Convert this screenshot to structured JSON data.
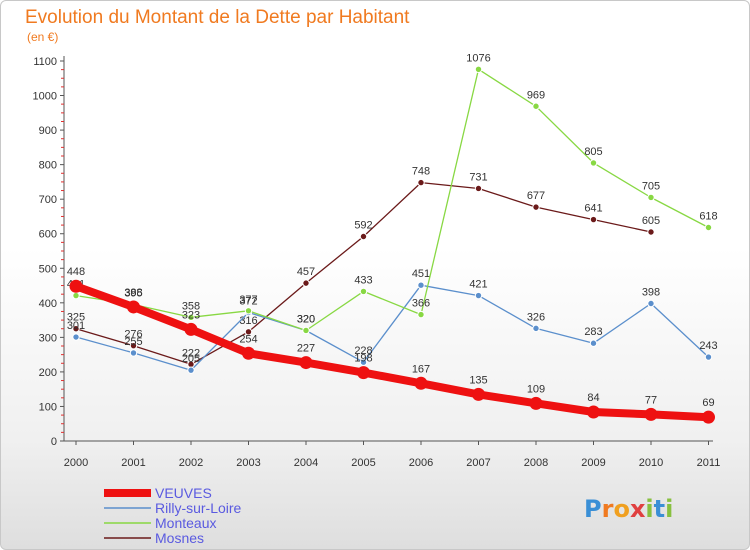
{
  "chart_data": {
    "type": "line",
    "title": "Evolution du Montant de la Dette par Habitant",
    "ylabel": "(en €)",
    "xlabel": "",
    "x": [
      "2000",
      "2001",
      "2002",
      "2003",
      "2004",
      "2005",
      "2006",
      "2007",
      "2008",
      "2009",
      "2010",
      "2011"
    ],
    "ylim": [
      0,
      1100
    ],
    "yticks": [
      0,
      100,
      200,
      300,
      400,
      500,
      600,
      700,
      800,
      900,
      1000,
      1100
    ],
    "grid": false,
    "legend_position": "bottom-left",
    "series": [
      {
        "name": "Mosnes",
        "color": "#6b1a1a",
        "values": [
          325,
          276,
          222,
          316,
          457,
          592,
          748,
          731,
          677,
          641,
          605,
          null
        ]
      },
      {
        "name": "Rilly-sur-Loire",
        "color": "#5b8fcc",
        "values": [
          301,
          255,
          205,
          372,
          320,
          228,
          451,
          421,
          326,
          283,
          398,
          243
        ]
      },
      {
        "name": "Monteaux",
        "color": "#88d843",
        "values": [
          421,
          395,
          358,
          377,
          320,
          433,
          366,
          1076,
          969,
          805,
          705,
          618
        ]
      },
      {
        "name": "VEUVES",
        "color": "#ee1111",
        "values": [
          448,
          388,
          323,
          254,
          227,
          198,
          167,
          135,
          109,
          84,
          77,
          69
        ]
      }
    ],
    "legend_order": [
      "VEUVES",
      "Rilly-sur-Loire",
      "Monteaux",
      "Mosnes"
    ]
  },
  "logo": {
    "text": "Proxiti"
  }
}
